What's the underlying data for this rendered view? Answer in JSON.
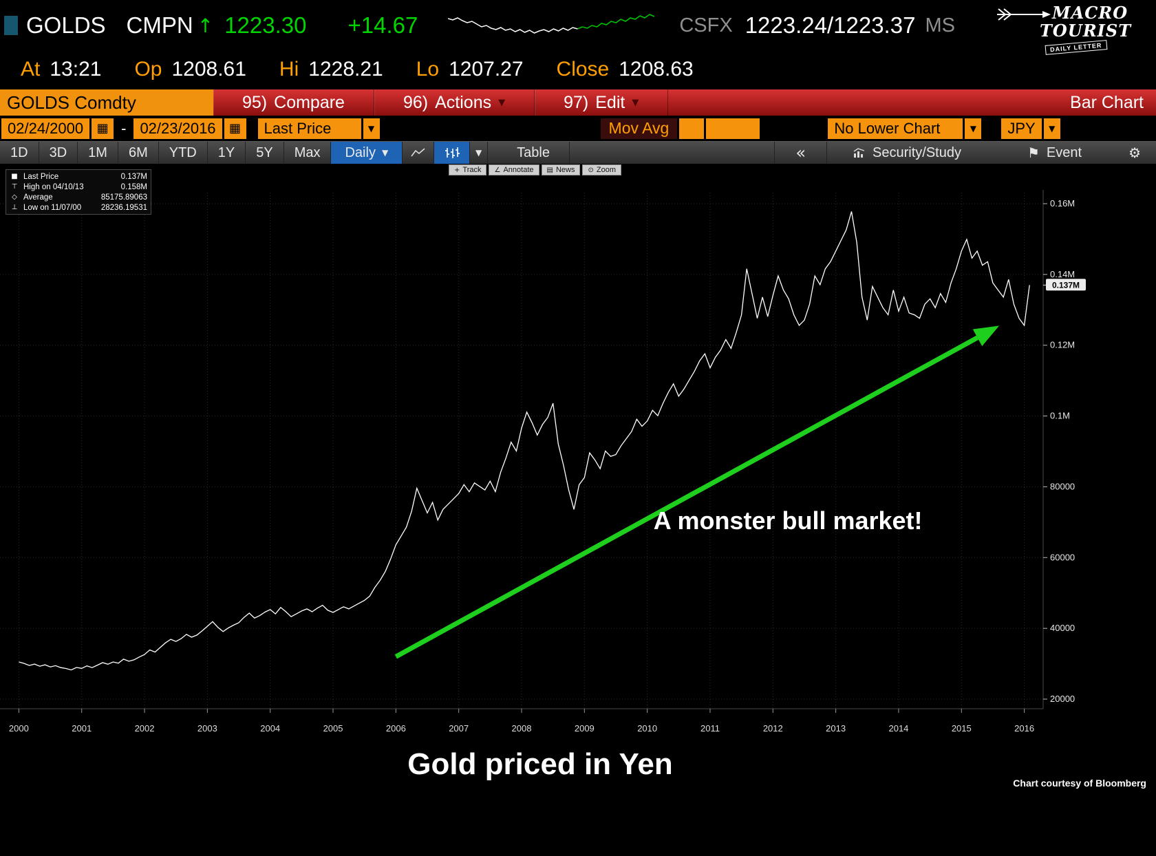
{
  "palette": {
    "bg": "#000000",
    "green": "#00d500",
    "amber": "#ffa000",
    "orange_field": "#f5930c",
    "menubar_red": "#c01818",
    "tab_blue": "#1f64b4",
    "line": "#ffffff",
    "arrow_green": "#1ecf1e",
    "grid": "#2d2d2d"
  },
  "header": {
    "ticker": "GOLDS",
    "field": "CMPN",
    "direction_arrow": "↑",
    "last": "1223.30",
    "change": "+14.67",
    "quote_source": "CSFX",
    "bid_ask": "1223.24/1223.37",
    "suffix": "MS",
    "stats": [
      {
        "label": "At",
        "value": "13:21"
      },
      {
        "label": "Op",
        "value": "1208.61"
      },
      {
        "label": "Hi",
        "value": "1228.21"
      },
      {
        "label": "Lo",
        "value": "1207.27"
      },
      {
        "label": "Close",
        "value": "1208.63"
      }
    ],
    "sparkline": {
      "white": [
        12,
        14,
        11,
        15,
        18,
        16,
        20,
        24,
        22,
        26,
        28,
        25,
        29,
        27,
        31,
        28,
        32,
        29,
        33,
        30,
        28,
        31,
        27,
        30,
        26,
        29,
        25,
        27
      ],
      "green": [
        24,
        26,
        22,
        24,
        19,
        21,
        16,
        18,
        13,
        16,
        11,
        13,
        8,
        11,
        6,
        9
      ]
    },
    "logo": {
      "line1": "MACRO",
      "line2": "TOURIST",
      "badge": "DAILY LETTER"
    }
  },
  "menubar": {
    "security": "GOLDS Comdty",
    "items": [
      {
        "key": "95)",
        "label": "Compare",
        "caret": false
      },
      {
        "key": "96)",
        "label": "Actions",
        "caret": true
      },
      {
        "key": "97)",
        "label": "Edit",
        "caret": true
      }
    ],
    "right_label": "Bar Chart"
  },
  "rangebar": {
    "date_from": "02/24/2000",
    "range_separator": "-",
    "date_to": "02/23/2016",
    "price_type": "Last Price",
    "mov_avg_label": "Mov Avg",
    "lower_chart": "No Lower Chart",
    "currency": "JPY"
  },
  "tabbar": {
    "periods": [
      "1D",
      "3D",
      "1M",
      "6M",
      "YTD",
      "1Y",
      "5Y",
      "Max"
    ],
    "frequency": "Daily",
    "table": "Table",
    "security_study": "Security/Study",
    "event": "Event"
  },
  "icons": {
    "caret_down": "▼",
    "calendar": "▦",
    "collapse": "«",
    "flag": "⚑",
    "gear": "⚙",
    "track": "+",
    "annotate": "∠",
    "news": "▤",
    "zoom": "⊙"
  },
  "chart_toolbar": [
    {
      "icon": "track",
      "label": "Track"
    },
    {
      "icon": "annotate",
      "label": "Annotate"
    },
    {
      "icon": "news",
      "label": "News"
    },
    {
      "icon": "zoom",
      "label": "Zoom"
    }
  ],
  "legend": {
    "rows": [
      {
        "marker": "■",
        "label": "Last Price",
        "value": "0.137M"
      },
      {
        "marker": "⊤",
        "label": "High on 04/10/13",
        "value": "0.158M"
      },
      {
        "marker": "◇",
        "label": "Average",
        "value": "85175.89063"
      },
      {
        "marker": "⊥",
        "label": "Low on 11/07/00",
        "value": "28236.19531"
      }
    ]
  },
  "chart_data": {
    "type": "line",
    "title": "Gold priced in Yen",
    "x_start_year": 2000.0,
    "x_step_years": 0.0833333,
    "xlim": [
      1999.7,
      2016.3
    ],
    "ylim": [
      20000,
      160000
    ],
    "grid": true,
    "legend_position": "top-left",
    "x_ticks": [
      2000,
      2001,
      2002,
      2003,
      2004,
      2005,
      2006,
      2007,
      2008,
      2009,
      2010,
      2011,
      2012,
      2013,
      2014,
      2015,
      2016
    ],
    "y_ticks": [
      {
        "value": 160000,
        "label": "0.16M"
      },
      {
        "value": 140000,
        "label": "0.14M"
      },
      {
        "value": 120000,
        "label": "0.12M"
      },
      {
        "value": 100000,
        "label": "0.1M"
      },
      {
        "value": 80000,
        "label": "80000"
      },
      {
        "value": 60000,
        "label": "60000"
      },
      {
        "value": 40000,
        "label": "40000"
      },
      {
        "value": 20000,
        "label": "20000"
      }
    ],
    "series": [
      {
        "name": "Last Price",
        "color": "#ffffff",
        "values": [
          30500,
          30100,
          29500,
          29900,
          29300,
          29700,
          29100,
          29450,
          28900,
          28650,
          28236,
          28950,
          28700,
          29400,
          28900,
          29600,
          30300,
          29850,
          30500,
          30150,
          31300,
          30700,
          31100,
          31900,
          32600,
          33900,
          33300,
          34600,
          35900,
          36900,
          36300,
          37100,
          38300,
          37500,
          38100,
          39300,
          40600,
          41900,
          40300,
          39100,
          40100,
          40900,
          41600,
          43100,
          44300,
          42900,
          43600,
          44600,
          45300,
          44100,
          45900,
          44700,
          43300,
          44100,
          44900,
          45500,
          44700,
          45700,
          46500,
          45100,
          44500,
          45300,
          46100,
          45500,
          46300,
          47100,
          47900,
          49100,
          51600,
          53600,
          56100,
          59600,
          63600,
          66100,
          68600,
          73100,
          79600,
          76100,
          72600,
          75600,
          70600,
          73600,
          75100,
          76600,
          78100,
          80600,
          78600,
          81100,
          80100,
          79100,
          81600,
          78600,
          84100,
          88100,
          92600,
          90100,
          96600,
          101100,
          98100,
          94600,
          97600,
          99600,
          103600,
          92100,
          86100,
          79100,
          73600,
          80600,
          82600,
          89600,
          87600,
          85100,
          90100,
          88600,
          89100,
          91600,
          93600,
          95600,
          99100,
          97100,
          98600,
          101600,
          100100,
          103600,
          106600,
          109100,
          105600,
          107600,
          110100,
          112600,
          115600,
          117600,
          113600,
          116600,
          118600,
          121600,
          119100,
          123600,
          128600,
          141600,
          134600,
          127600,
          133600,
          128100,
          134100,
          139600,
          135600,
          133100,
          128600,
          125600,
          127100,
          131600,
          139600,
          137100,
          141600,
          143600,
          146600,
          149600,
          152600,
          157800,
          149100,
          133600,
          127100,
          136600,
          133600,
          130600,
          128600,
          135600,
          129600,
          133600,
          129100,
          128600,
          127600,
          131600,
          133100,
          130600,
          134600,
          132100,
          137600,
          141600,
          146600,
          149900,
          144600,
          146600,
          142600,
          143600,
          137600,
          135600,
          133600,
          138600,
          131600,
          127600,
          125600,
          137000
        ]
      }
    ],
    "last_price_marker": {
      "value": 137000,
      "label": "0.137M"
    },
    "annotation": {
      "text": "A monster bull market!",
      "text_x": 2010.1,
      "text_y": 68000,
      "arrow": {
        "x1": 2006.0,
        "y1": 32000,
        "x2": 2015.6,
        "y2": 125500
      }
    }
  },
  "footer": {
    "title": "Gold priced in Yen",
    "credit": "Chart courtesy of Bloomberg"
  }
}
